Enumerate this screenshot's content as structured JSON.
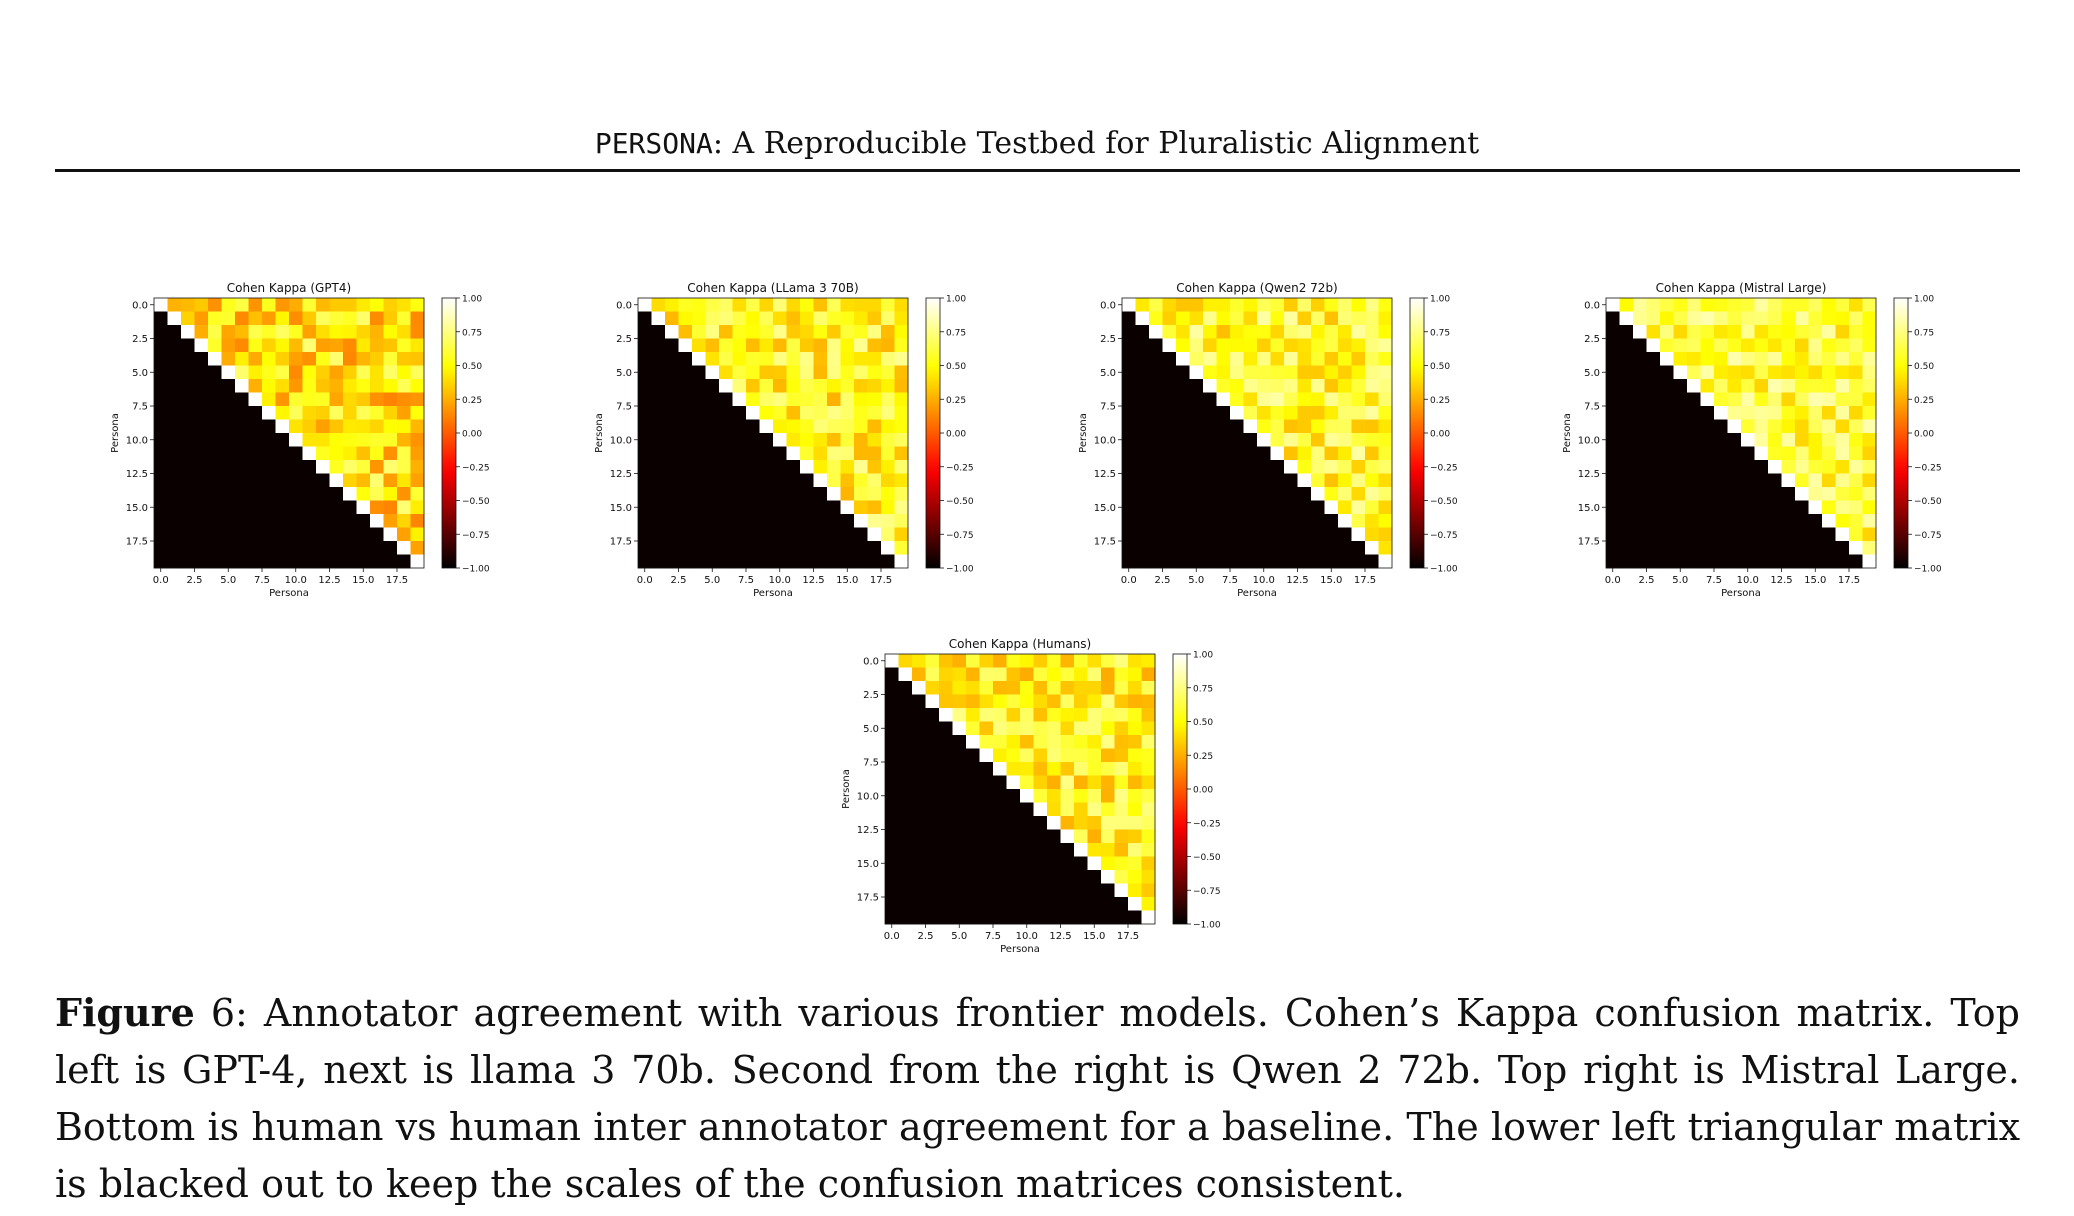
{
  "header": {
    "running_title_mono": "PERSONA",
    "running_title_rest": ": A Reproducible Testbed for Pluralistic Alignment"
  },
  "chart_data": [
    {
      "type": "heatmap",
      "title": "Cohen Kappa (GPT4)",
      "xlabel": "Persona",
      "ylabel": "Persona",
      "n": 20,
      "seed": 11,
      "mean": 0.42,
      "spread": 0.3,
      "xticks": [
        "0.0",
        "2.5",
        "5.0",
        "7.5",
        "10.0",
        "12.5",
        "15.0",
        "17.5"
      ],
      "yticks": [
        "0.0",
        "2.5",
        "5.0",
        "7.5",
        "10.0",
        "12.5",
        "15.0",
        "17.5"
      ],
      "colorbar_ticks": [
        "1.00",
        "0.75",
        "0.50",
        "0.25",
        "0.00",
        "−0.25",
        "−0.50",
        "−0.75",
        "−1.00"
      ],
      "vmin": -1.0,
      "vmax": 1.0,
      "lower_triangle": "masked",
      "colormap": "hot"
    },
    {
      "type": "heatmap",
      "title": "Cohen Kappa (LLama 3 70B)",
      "xlabel": "Persona",
      "ylabel": "Persona",
      "n": 20,
      "seed": 23,
      "mean": 0.52,
      "spread": 0.26,
      "xticks": [
        "0.0",
        "2.5",
        "5.0",
        "7.5",
        "10.0",
        "12.5",
        "15.0",
        "17.5"
      ],
      "yticks": [
        "0.0",
        "2.5",
        "5.0",
        "7.5",
        "10.0",
        "12.5",
        "15.0",
        "17.5"
      ],
      "colorbar_ticks": [
        "1.00",
        "0.75",
        "0.50",
        "0.25",
        "0.00",
        "−0.25",
        "−0.50",
        "−0.75",
        "−1.00"
      ],
      "vmin": -1.0,
      "vmax": 1.0,
      "lower_triangle": "masked",
      "colormap": "hot"
    },
    {
      "type": "heatmap",
      "title": "Cohen Kappa (Qwen2 72b)",
      "xlabel": "Persona",
      "ylabel": "Persona",
      "n": 20,
      "seed": 37,
      "mean": 0.56,
      "spread": 0.26,
      "xticks": [
        "0.0",
        "2.5",
        "5.0",
        "7.5",
        "10.0",
        "12.5",
        "15.0",
        "17.5"
      ],
      "yticks": [
        "0.0",
        "2.5",
        "5.0",
        "7.5",
        "10.0",
        "12.5",
        "15.0",
        "17.5"
      ],
      "colorbar_ticks": [
        "1.00",
        "0.75",
        "0.50",
        "0.25",
        "0.00",
        "−0.25",
        "−0.50",
        "−0.75",
        "−1.00"
      ],
      "vmin": -1.0,
      "vmax": 1.0,
      "lower_triangle": "masked",
      "colormap": "hot"
    },
    {
      "type": "heatmap",
      "title": "Cohen Kappa (Mistral Large)",
      "xlabel": "Persona",
      "ylabel": "Persona",
      "n": 20,
      "seed": 51,
      "mean": 0.6,
      "spread": 0.24,
      "xticks": [
        "0.0",
        "2.5",
        "5.0",
        "7.5",
        "10.0",
        "12.5",
        "15.0",
        "17.5"
      ],
      "yticks": [
        "0.0",
        "2.5",
        "5.0",
        "7.5",
        "10.0",
        "12.5",
        "15.0",
        "17.5"
      ],
      "colorbar_ticks": [
        "1.00",
        "0.75",
        "0.50",
        "0.25",
        "0.00",
        "−0.25",
        "−0.50",
        "−0.75",
        "−1.00"
      ],
      "vmin": -1.0,
      "vmax": 1.0,
      "lower_triangle": "masked",
      "colormap": "hot"
    },
    {
      "type": "heatmap",
      "title": "Cohen Kappa (Humans)",
      "xlabel": "Persona",
      "ylabel": "Persona",
      "n": 20,
      "seed": 67,
      "mean": 0.5,
      "spread": 0.26,
      "xticks": [
        "0.0",
        "2.5",
        "5.0",
        "7.5",
        "10.0",
        "12.5",
        "15.0",
        "17.5"
      ],
      "yticks": [
        "0.0",
        "2.5",
        "5.0",
        "7.5",
        "10.0",
        "12.5",
        "15.0",
        "17.5"
      ],
      "colorbar_ticks": [
        "1.00",
        "0.75",
        "0.50",
        "0.25",
        "0.00",
        "−0.25",
        "−0.50",
        "−0.75",
        "−1.00"
      ],
      "vmin": -1.0,
      "vmax": 1.0,
      "lower_triangle": "masked",
      "colormap": "hot"
    }
  ],
  "caption": {
    "label": "Figure",
    "number": " 6",
    "text": ": Annotator agreement with various frontier models. Cohen’s Kappa confusion matrix. Top left is GPT-4, next is llama 3 70b. Second from the right is Qwen 2 72b. Top right is Mistral Large. Bottom is human vs human inter annotator agreement for a baseline. The lower left triangular matrix is blacked out to keep the scales of the confusion matrices consistent."
  }
}
